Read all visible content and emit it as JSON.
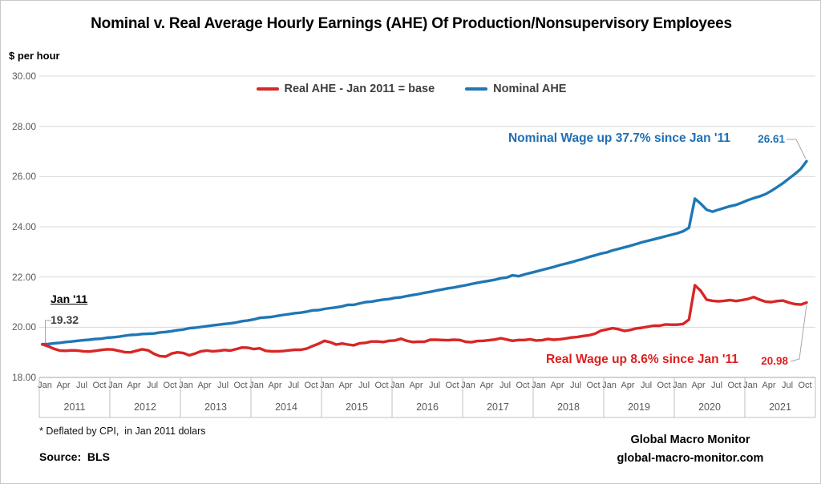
{
  "title": "Nominal v. Real Average Hourly Earnings (AHE) Of Production/Nonsupervisory Employees",
  "y_axis_unit": "$ per hour",
  "legend": [
    {
      "label": "Real AHE - Jan 2011 = base",
      "color": "#d92626"
    },
    {
      "label": "Nominal AHE",
      "color": "#1f77b4"
    }
  ],
  "annotations": {
    "start_label": "Jan '11",
    "start_value": "19.32",
    "nominal_note": "Nominal Wage up 37.7% since Jan '11",
    "nominal_end_value": "26.61",
    "real_note": "Real Wage up 8.6% since Jan '11",
    "real_end_value": "20.98"
  },
  "footnotes": {
    "deflator": "* Deflated by CPI,  in Jan 2011 dolars",
    "source": "Source:  BLS"
  },
  "branding": {
    "line1": "Global Macro Monitor",
    "line2": "global-macro-monitor.com"
  },
  "colors": {
    "nominal_line": "#1f77b4",
    "real_line": "#d92626",
    "gridline": "#dadada",
    "axis_line": "#a6a6a6",
    "cell_border": "#bfbfbf",
    "tick_text": "#595959",
    "connector": "#a6a6a6"
  },
  "chart_data": {
    "type": "line",
    "title": "Nominal v. Real Average Hourly Earnings (AHE) Of Production/Nonsupervisory Employees",
    "ylabel": "$ per hour",
    "ylim": [
      18,
      30
    ],
    "y_ticks": [
      "30.00",
      "28.00",
      "26.00",
      "24.00",
      "22.00",
      "20.00",
      "18.00"
    ],
    "x_start": "2011-01",
    "freq": "monthly",
    "x_month_labels": [
      "Jan",
      "Apr",
      "Jul",
      "Oct"
    ],
    "x_year_labels": [
      "2011",
      "2012",
      "2013",
      "2014",
      "2015",
      "2016",
      "2017",
      "2018",
      "2019",
      "2020",
      "2021"
    ],
    "grid": true,
    "legend_position": "top-center",
    "series": [
      {
        "name": "Nominal AHE",
        "color": "#1f77b4",
        "values": [
          19.32,
          19.33,
          19.36,
          19.38,
          19.41,
          19.43,
          19.46,
          19.48,
          19.5,
          19.53,
          19.54,
          19.58,
          19.6,
          19.62,
          19.66,
          19.69,
          19.7,
          19.73,
          19.74,
          19.75,
          19.79,
          19.81,
          19.84,
          19.88,
          19.91,
          19.96,
          19.98,
          20.01,
          20.04,
          20.07,
          20.1,
          20.13,
          20.15,
          20.19,
          20.24,
          20.27,
          20.31,
          20.37,
          20.39,
          20.41,
          20.45,
          20.49,
          20.52,
          20.56,
          20.58,
          20.62,
          20.67,
          20.68,
          20.73,
          20.76,
          20.79,
          20.83,
          20.89,
          20.89,
          20.95,
          21.0,
          21.02,
          21.06,
          21.1,
          21.12,
          21.17,
          21.19,
          21.24,
          21.28,
          21.32,
          21.37,
          21.41,
          21.46,
          21.5,
          21.55,
          21.58,
          21.63,
          21.67,
          21.72,
          21.77,
          21.81,
          21.85,
          21.89,
          21.95,
          21.98,
          22.07,
          22.03,
          22.1,
          22.16,
          22.22,
          22.28,
          22.34,
          22.4,
          22.47,
          22.53,
          22.59,
          22.66,
          22.72,
          22.8,
          22.86,
          22.93,
          22.98,
          23.06,
          23.12,
          23.18,
          23.24,
          23.31,
          23.38,
          23.44,
          23.5,
          23.56,
          23.62,
          23.68,
          23.74,
          23.82,
          23.96,
          25.12,
          24.92,
          24.68,
          24.6,
          24.68,
          24.75,
          24.82,
          24.87,
          24.96,
          25.06,
          25.14,
          25.21,
          25.3,
          25.43,
          25.58,
          25.74,
          25.92,
          26.1,
          26.3,
          26.61
        ]
      },
      {
        "name": "Real AHE - Jan 2011 = base",
        "color": "#d92626",
        "values": [
          19.32,
          19.24,
          19.14,
          19.07,
          19.06,
          19.08,
          19.07,
          19.04,
          19.03,
          19.06,
          19.09,
          19.12,
          19.11,
          19.06,
          19.01,
          19.0,
          19.06,
          19.12,
          19.08,
          18.94,
          18.85,
          18.83,
          18.95,
          19.0,
          18.97,
          18.88,
          18.95,
          19.04,
          19.07,
          19.04,
          19.06,
          19.09,
          19.07,
          19.13,
          19.19,
          19.18,
          19.13,
          19.16,
          19.06,
          19.04,
          19.04,
          19.05,
          19.08,
          19.1,
          19.1,
          19.15,
          19.25,
          19.34,
          19.46,
          19.4,
          19.31,
          19.35,
          19.31,
          19.28,
          19.36,
          19.38,
          19.43,
          19.43,
          19.41,
          19.46,
          19.47,
          19.54,
          19.46,
          19.41,
          19.42,
          19.42,
          19.5,
          19.5,
          19.49,
          19.48,
          19.5,
          19.49,
          19.42,
          19.4,
          19.45,
          19.46,
          19.48,
          19.51,
          19.56,
          19.51,
          19.46,
          19.49,
          19.49,
          19.52,
          19.47,
          19.48,
          19.53,
          19.5,
          19.52,
          19.55,
          19.59,
          19.61,
          19.65,
          19.68,
          19.74,
          19.86,
          19.91,
          19.96,
          19.92,
          19.85,
          19.89,
          19.95,
          19.98,
          20.02,
          20.06,
          20.06,
          20.11,
          20.1,
          20.1,
          20.13,
          20.3,
          21.67,
          21.45,
          21.1,
          21.05,
          21.03,
          21.05,
          21.08,
          21.04,
          21.08,
          21.12,
          21.2,
          21.1,
          21.02,
          21.0,
          21.04,
          21.06,
          20.98,
          20.92,
          20.9,
          20.98
        ]
      }
    ]
  }
}
